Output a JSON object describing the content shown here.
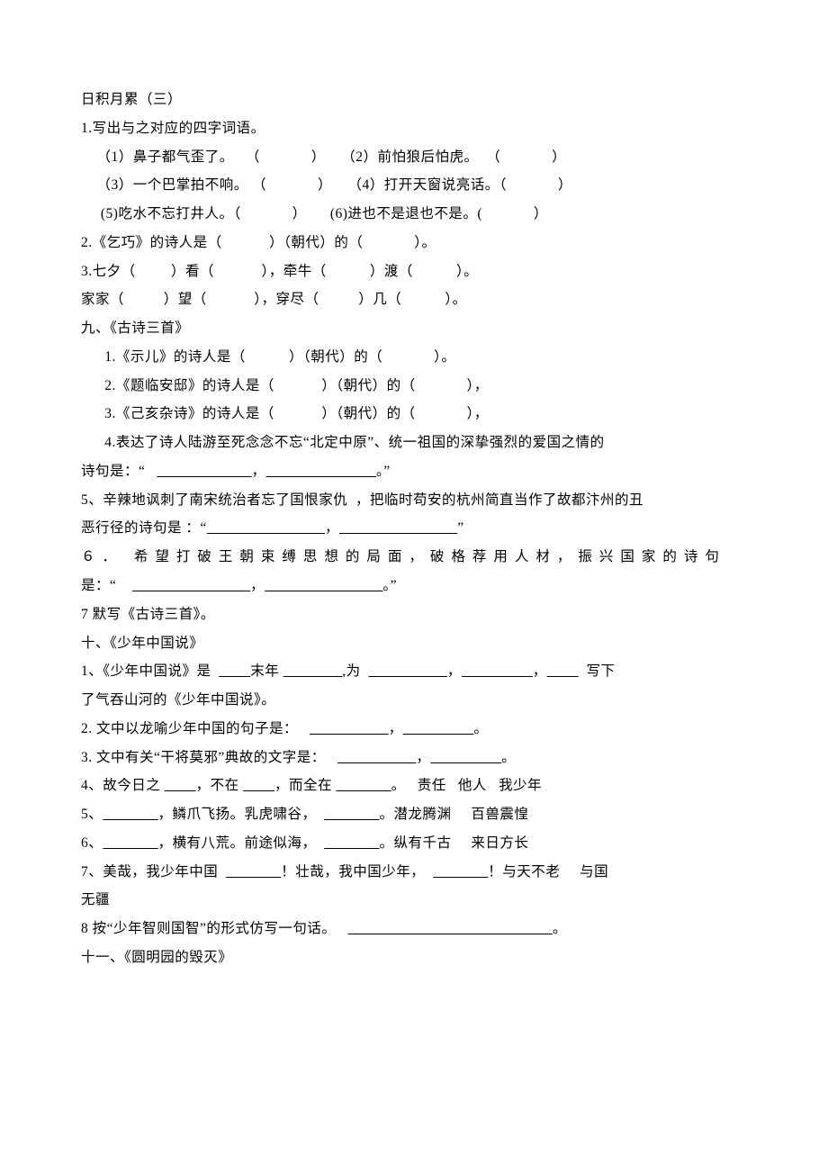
{
  "background_color": "#ffffff",
  "text_color": "#000000",
  "font_family": "SimSun",
  "font_size_pt": 12,
  "line_height": 2.05,
  "lines": {
    "l1": "日积月累（三）",
    "l2": "1.写出与之对应的四字词语。",
    "l3": "    （1）鼻子都气歪了。   （             ）    （2）前怕狼后怕虎。  （             ）",
    "l4": "    （3）一个巴掌拍不响。 （             ）    （4）打开天窗说亮话。（             ）",
    "l5": "     (5)吃水不忘打井人。（             ）      (6)进也不是退也不是。(             ）",
    "l6": "2.《乞巧》的诗人是（            ）（朝代）的（             ）。",
    "l7": "3.七夕（         ）看（            ），牵牛（           ）渡（           ）。",
    "l8": "家家（          ）望（            ），穿尽（          ）几（           ）。",
    "l9": "九、《古诗三首》",
    "l10": "      1.《示儿》的诗人是（           ）（朝代）的（             ）。",
    "l11": "      2.《题临安邸》的诗人是（            ）（朝代）的（             ），",
    "l12": "      3.《己亥杂诗》的诗人是（            ）（朝代）的（             ），",
    "l13": "      4.表达了诗人陆游至死念念不忘“北定中原”、统一祖国的深挚强烈的爱国之情的",
    "l14a": "诗句是：“   ",
    "l14u1": "                        ",
    "l14b": "，",
    "l14u2": "                            ",
    "l14c": "。”",
    "l15": "5、辛辣地讽刺了南宋统治者忘了国恨家仇  ，把临时苟安的杭州简直当作了故都汴州的丑",
    "l16a": "恶行径的诗句是 ：“",
    "l16u1": "                              ",
    "l16b": "，",
    "l16u2": "                              ",
    "l16c": "”",
    "l17main": "６． 希望打破王朝束缚思想的局面，破格荐用人材，振兴国家的诗句",
    "l18a": "是：“    ",
    "l18u1": "                              ",
    "l18b": "，",
    "l18u2": "                              ",
    "l18c": "。”",
    "l19": "7 默写《古诗三首》。",
    "l20": "十、《少年中国说》",
    "l21a": "1、《少年中国说》是  ",
    "l21u1": "        ",
    "l21b": "末年 ",
    "l21u2": "               ",
    "l21c": ",为  ",
    "l21u3": "                    ",
    "l21d": "，",
    "l21u4": "                  ",
    "l21e": "，",
    "l21u5": "        ",
    "l21f": "  写下",
    "l22": "了气吞山河的《少年中国说》。",
    "l23a": "2. 文中以龙喻少年中国的句子是：   ",
    "l23u1": "                    ",
    "l23b": "，",
    "l23u2": "                  ",
    "l23c": "。",
    "l24a": "3. 文中有关“干将莫邪”典故的文字是：   ",
    "l24u1": "                    ",
    "l24b": "，",
    "l24u2": "                  ",
    "l24c": "。",
    "l25a": "4、故今日之 ",
    "l25u1": "        ",
    "l25b": "，不在 ",
    "l25u2": "        ",
    "l25c": "，而全在 ",
    "l25u3": "              ",
    "l25d": "。   责任   他人   我少年",
    "l26a": "5、",
    "l26u1": "              ",
    "l26b": "，鳞爪飞扬。乳虎啸谷，  ",
    "l26u2": "              ",
    "l26c": "。潜龙腾渊     百兽震惶",
    "l27a": "6、",
    "l27u1": "              ",
    "l27b": "，横有八荒。前途似海，  ",
    "l27u2": "              ",
    "l27c": "。纵有千古     来日方长",
    "l28a": "7、美哉，我少年中国  ",
    "l28u1": "              ",
    "l28b": "！壮哉，我中国少年，  ",
    "l28u2": "              ",
    "l28c": "！与天不老     与国",
    "l29": "无疆",
    "l30a": "8 按“少年智则国智”的形式仿写一句话。   ",
    "l30u1": "                                                    ",
    "l30b": "。",
    "l31": "十一、《圆明园的毁灭》"
  }
}
